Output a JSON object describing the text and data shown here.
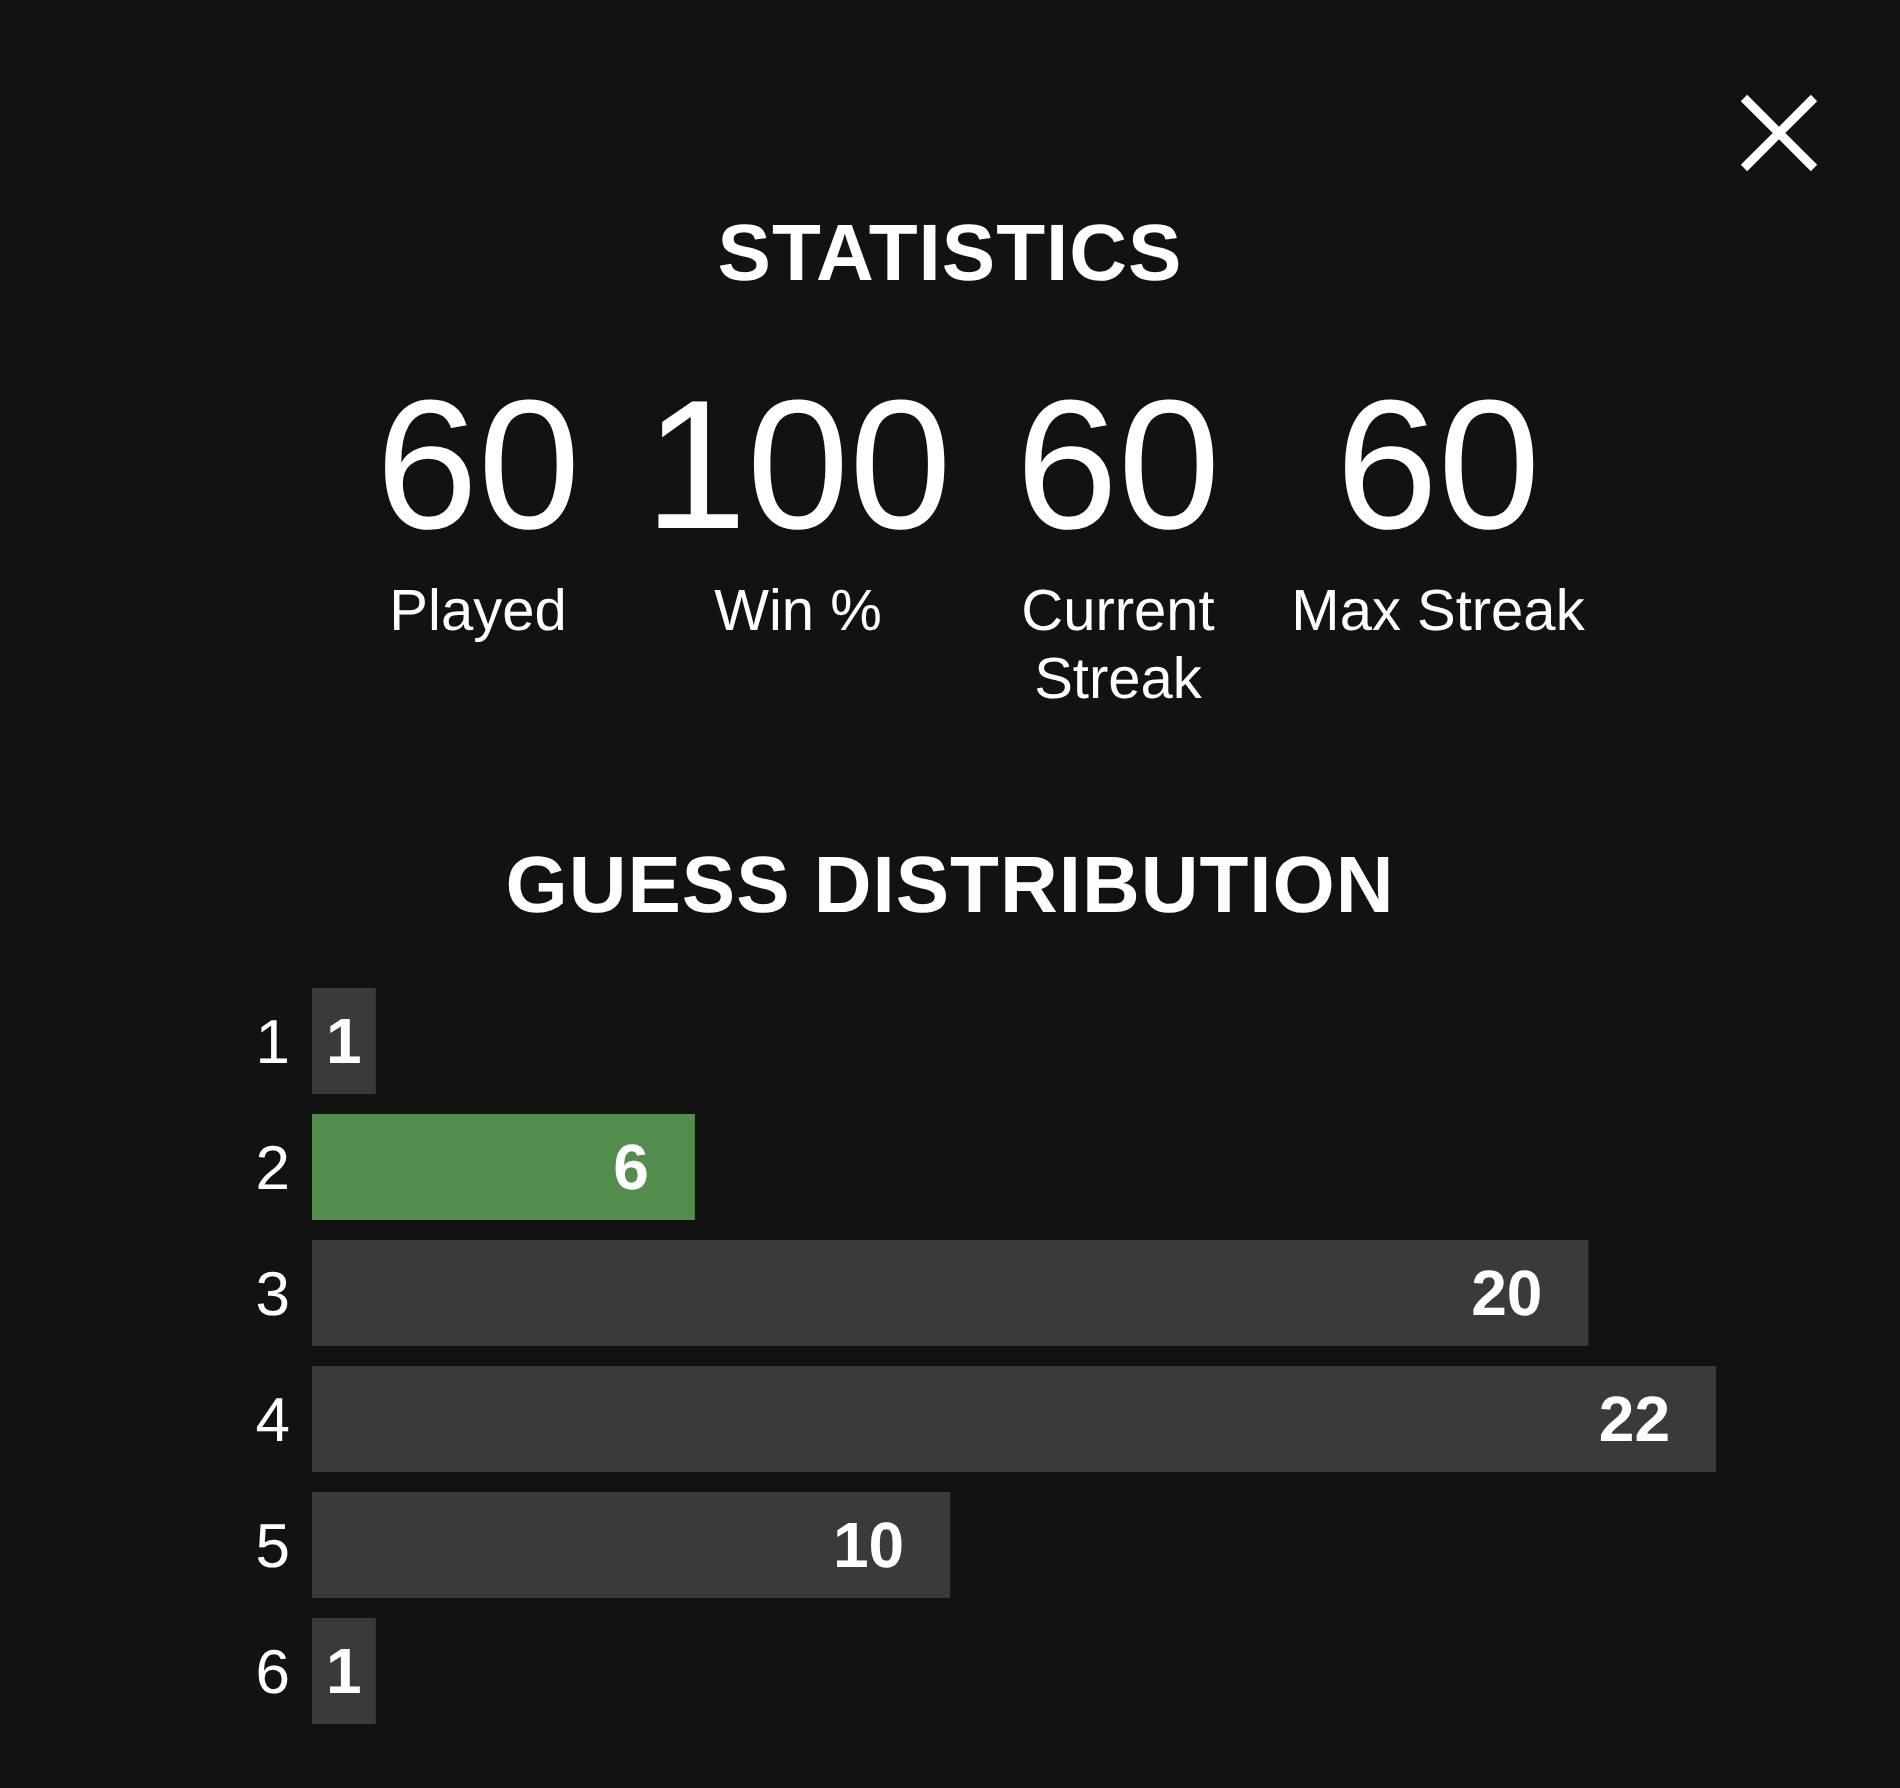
{
  "chart_data": [
    {
      "type": "other",
      "title": "STATISTICS",
      "categories": [
        "Played",
        "Win %",
        "Current Streak",
        "Max Streak"
      ],
      "values": [
        60,
        100,
        60,
        60
      ],
      "data_labels": true
    },
    {
      "type": "bar",
      "orientation": "horizontal",
      "title": "GUESS DISTRIBUTION",
      "categories": [
        "1",
        "2",
        "3",
        "4",
        "5",
        "6"
      ],
      "values": [
        1,
        6,
        20,
        22,
        10,
        1
      ],
      "colors": [
        "#3a3a3c",
        "#538d4e",
        "#3a3a3c",
        "#3a3a3c",
        "#3a3a3c",
        "#3a3a3c"
      ],
      "data_labels": true,
      "tick_labels": "y"
    }
  ]
}
